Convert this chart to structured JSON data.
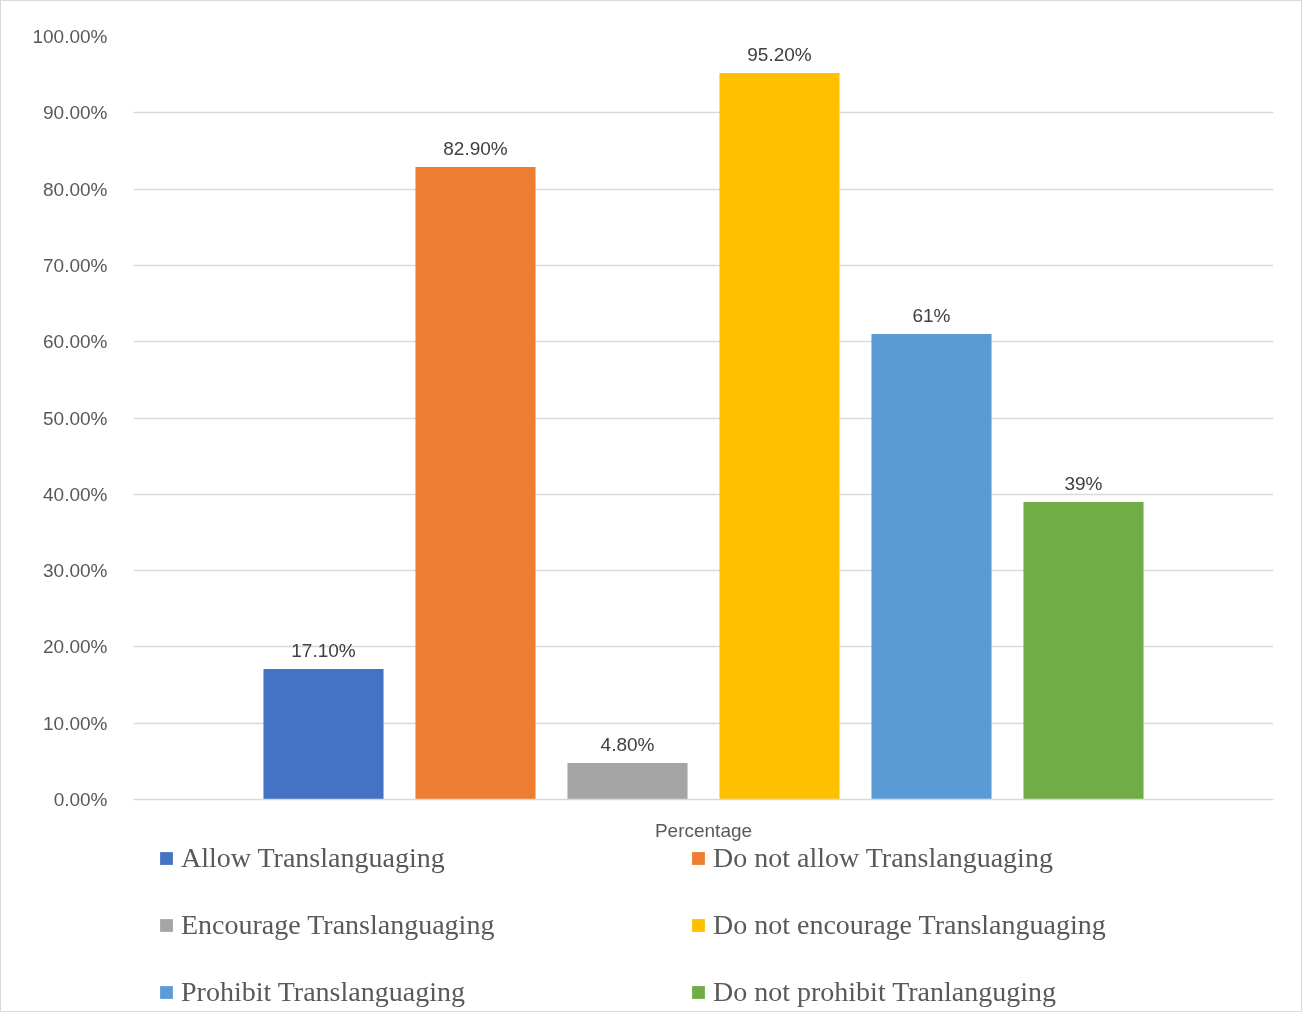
{
  "chart_data": {
    "type": "bar",
    "categories": [
      "Percentage"
    ],
    "series": [
      {
        "name": "Allow Translanguaging",
        "color": "#4472c4",
        "values": [
          17.1
        ],
        "value_labels": [
          "17.10%"
        ]
      },
      {
        "name": "Do not allow Translanguaging",
        "color": "#ed7d31",
        "values": [
          82.9
        ],
        "value_labels": [
          "82.90%"
        ]
      },
      {
        "name": "Encourage Translanguaging",
        "color": "#a5a5a5",
        "values": [
          4.8
        ],
        "value_labels": [
          "4.80%"
        ]
      },
      {
        "name": "Do not encourage Translanguaging",
        "color": "#ffc000",
        "values": [
          95.2
        ],
        "value_labels": [
          "95.20%"
        ]
      },
      {
        "name": "Prohibit Translanguaging",
        "color": "#5b9bd5",
        "values": [
          61
        ],
        "value_labels": [
          "61%"
        ]
      },
      {
        "name": "Do not prohibit Tranlanguging",
        "color": "#70ad47",
        "values": [
          39
        ],
        "value_labels": [
          "39%"
        ]
      }
    ],
    "ylim": [
      0,
      100
    ],
    "yticks": [
      {
        "value": 0,
        "label": "0.00%"
      },
      {
        "value": 10,
        "label": "10.00%"
      },
      {
        "value": 20,
        "label": "20.00%"
      },
      {
        "value": 30,
        "label": "30.00%"
      },
      {
        "value": 40,
        "label": "40.00%"
      },
      {
        "value": 50,
        "label": "50.00%"
      },
      {
        "value": 60,
        "label": "60.00%"
      },
      {
        "value": 70,
        "label": "70.00%"
      },
      {
        "value": 80,
        "label": "80.00%"
      },
      {
        "value": 90,
        "label": "90.00%"
      },
      {
        "value": 100,
        "label": "100.00%"
      }
    ],
    "grid": "y",
    "legend": "bottom"
  }
}
